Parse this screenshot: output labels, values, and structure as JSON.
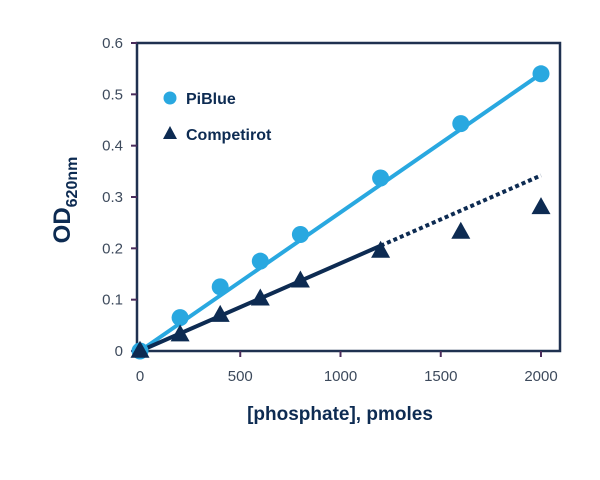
{
  "chart_data": {
    "type": "scatter",
    "title": "",
    "xlabel": "[phosphate], pmoles",
    "ylabel": "OD",
    "ylabel_subscript": "620nm",
    "xlim": [
      0,
      2000
    ],
    "ylim": [
      0,
      0.6
    ],
    "x_ticks": [
      0,
      500,
      1000,
      1500,
      2000
    ],
    "x_tick_labels": [
      "0",
      "500",
      "1000",
      "1500",
      "2000"
    ],
    "y_ticks": [
      0,
      0.1,
      0.2,
      0.3,
      0.4,
      0.5,
      0.6
    ],
    "y_tick_labels": [
      "0",
      "0.1",
      "0.2",
      "0.3",
      "0.4",
      "0.5",
      "0.6"
    ],
    "grid": false,
    "legend_position": "upper left (inside)",
    "series": [
      {
        "name": "PiBlue",
        "marker": "circle",
        "color": "#29a8e0",
        "x": [
          0,
          200,
          400,
          600,
          800,
          1200,
          1600,
          2000
        ],
        "y": [
          0.0,
          0.065,
          0.125,
          0.175,
          0.227,
          0.337,
          0.443,
          0.54
        ],
        "fit_line": {
          "style": "solid",
          "from": [
            0,
            0.0
          ],
          "to": [
            2000,
            0.54
          ]
        }
      },
      {
        "name": "Competirot",
        "marker": "triangle",
        "color": "#0d2b52",
        "x": [
          0,
          200,
          400,
          600,
          800,
          1200,
          1600,
          2000
        ],
        "y": [
          0.0,
          0.032,
          0.07,
          0.102,
          0.137,
          0.195,
          0.232,
          0.28
        ],
        "fit_line": {
          "style": "solid",
          "from": [
            0,
            0.0
          ],
          "to": [
            1200,
            0.205
          ]
        },
        "extrapolation_line": {
          "style": "dotted",
          "from": [
            1200,
            0.205
          ],
          "to": [
            2000,
            0.342
          ]
        }
      }
    ]
  },
  "legend": {
    "items": [
      {
        "label": "PiBlue"
      },
      {
        "label": "Competirot"
      }
    ]
  }
}
